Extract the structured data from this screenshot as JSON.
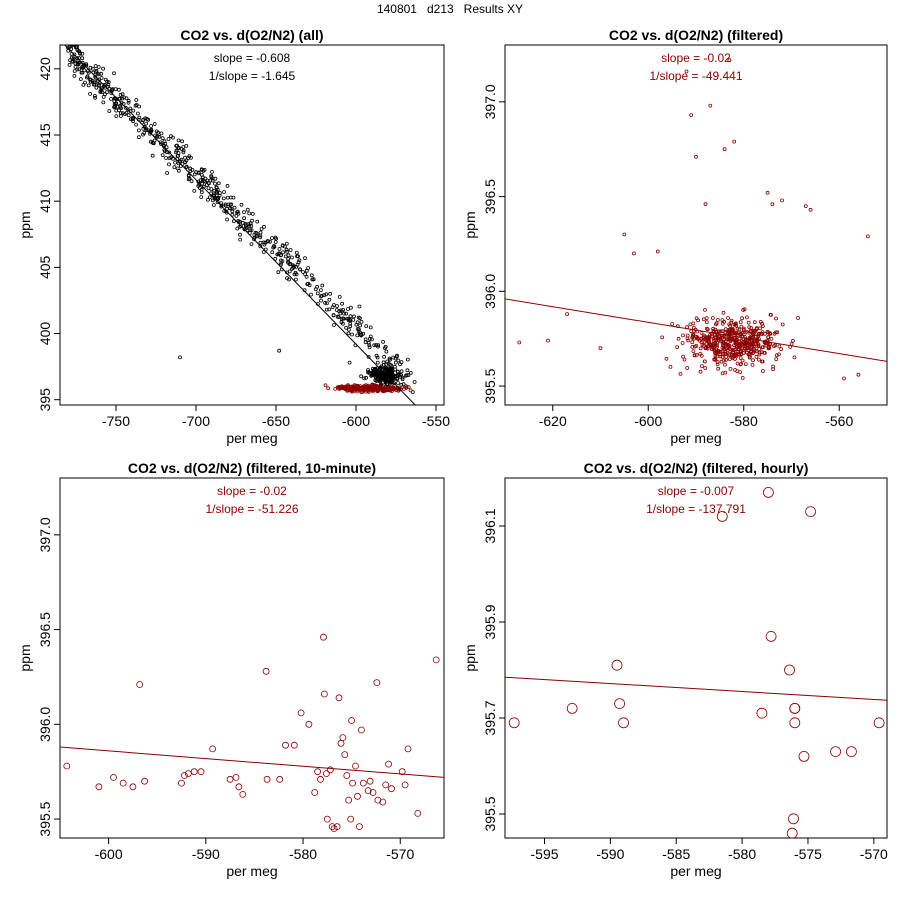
{
  "page_title": "140801   d213   Results XY",
  "colors": {
    "all_points": "#000000",
    "filtered": "#8b0000",
    "axis": "#000000"
  },
  "chart_data": [
    {
      "type": "scatter",
      "title": "CO2 vs. d(O2/N2) (all)",
      "xlabel": "per meg",
      "ylabel": "ppm",
      "xlim": [
        -785,
        -545
      ],
      "ylim": [
        394.6,
        421.8
      ],
      "xticks": [
        -750,
        -700,
        -650,
        -600,
        -550
      ],
      "yticks": [
        395,
        400,
        405,
        410,
        415,
        420
      ],
      "annotations": [
        "slope = -0.608",
        "1/slope = -1.645"
      ],
      "annotation_color": "#000000",
      "fit_line": {
        "slope": -0.608,
        "p1": [
          -782,
          421.8
        ],
        "p2": [
          -563,
          394.6
        ],
        "color": "#000000"
      },
      "series": [
        {
          "name": "all",
          "color": "#000000",
          "size": "small",
          "trend": {
            "x0": -780,
            "y0": 421.2,
            "slope": -0.115,
            "noise": 0.9,
            "n": 620,
            "xmin": -780,
            "xmax": -560
          },
          "cluster": {
            "xmin": -600,
            "xmax": -565,
            "ymin": 395.2,
            "ymax": 398.5,
            "n": 220
          },
          "points": [
            [
              -780,
              421.6
            ],
            [
              -778,
              421.5
            ],
            [
              -779,
              420.3
            ],
            [
              -710,
              398.2
            ],
            [
              -648,
              398.7
            ],
            [
              -604,
              397.8
            ]
          ]
        },
        {
          "name": "filtered",
          "color": "#8b0000",
          "size": "small",
          "cluster": {
            "xmin": -628,
            "xmax": -555,
            "ymin": 395.4,
            "ymax": 396.3,
            "n": 260
          }
        }
      ]
    },
    {
      "type": "scatter",
      "title": "CO2 vs. d(O2/N2) (filtered)",
      "xlabel": "per meg",
      "ylabel": "ppm",
      "xlim": [
        -630,
        -550
      ],
      "ylim": [
        395.4,
        397.3
      ],
      "xticks": [
        -620,
        -600,
        -580,
        -560
      ],
      "yticks": [
        395.5,
        396.0,
        396.5,
        397.0
      ],
      "annotations": [
        "slope = -0.02",
        "1/slope = -49.441"
      ],
      "annotation_color": "#8b0000",
      "fit_line": {
        "slope": -0.02,
        "p1": [
          -630,
          395.96
        ],
        "p2": [
          -550,
          395.63
        ],
        "color": "#8b0000"
      },
      "series": [
        {
          "name": "filtered",
          "color": "#8b0000",
          "size": "small",
          "cluster": {
            "xmin": -600,
            "xmax": -565,
            "ymin": 395.45,
            "ymax": 396.0,
            "n": 480
          },
          "points": [
            [
              -627,
              395.73
            ],
            [
              -621,
              395.74
            ],
            [
              -617,
              395.88
            ],
            [
              -610,
              395.7
            ],
            [
              -605,
              396.3
            ],
            [
              -603,
              396.2
            ],
            [
              -598,
              396.21
            ],
            [
              -592,
              397.16
            ],
            [
              -591,
              396.93
            ],
            [
              -590,
              396.71
            ],
            [
              -588,
              396.46
            ],
            [
              -587,
              396.98
            ],
            [
              -584,
              396.75
            ],
            [
              -583,
              397.22
            ],
            [
              -582,
              396.79
            ],
            [
              -575,
              396.52
            ],
            [
              -574,
              396.46
            ],
            [
              -572,
              396.48
            ],
            [
              -567,
              396.45
            ],
            [
              -566,
              396.43
            ],
            [
              -554,
              396.29
            ],
            [
              -556,
              395.56
            ],
            [
              -559,
              395.54
            ]
          ]
        }
      ]
    },
    {
      "type": "scatter",
      "title": "CO2 vs. d(O2/N2) (filtered, 10-minute)",
      "xlabel": "per meg",
      "ylabel": "ppm",
      "xlim": [
        -605,
        -565.5
      ],
      "ylim": [
        395.4,
        397.3
      ],
      "xticks": [
        -600,
        -590,
        -580,
        -570
      ],
      "yticks": [
        395.5,
        396.0,
        396.5,
        397.0
      ],
      "annotations": [
        "slope = -0.02",
        "1/slope = -51.226"
      ],
      "annotation_color": "#8b0000",
      "fit_line": {
        "slope": -0.02,
        "p1": [
          -605,
          395.88
        ],
        "p2": [
          -565.5,
          395.72
        ],
        "color": "#8b0000"
      },
      "series": [
        {
          "name": "10-minute",
          "color": "#8b0000",
          "size": "medium",
          "points": [
            [
              -604.3,
              395.78
            ],
            [
              -601,
              395.67
            ],
            [
              -599.5,
              395.72
            ],
            [
              -598.5,
              395.69
            ],
            [
              -597.5,
              395.67
            ],
            [
              -596.8,
              396.21
            ],
            [
              -596.3,
              395.7
            ],
            [
              -592.5,
              395.69
            ],
            [
              -592.2,
              395.73
            ],
            [
              -591.8,
              395.74
            ],
            [
              -591.2,
              395.75
            ],
            [
              -590.5,
              395.75
            ],
            [
              -589.3,
              395.87
            ],
            [
              -587.5,
              395.71
            ],
            [
              -586.9,
              395.72
            ],
            [
              -586.6,
              395.67
            ],
            [
              -586.2,
              395.63
            ],
            [
              -583.8,
              396.28
            ],
            [
              -583.7,
              395.71
            ],
            [
              -582.4,
              395.71
            ],
            [
              -581.8,
              395.89
            ],
            [
              -580.9,
              395.89
            ],
            [
              -580.2,
              396.06
            ],
            [
              -579.4,
              396.0
            ],
            [
              -578.8,
              395.64
            ],
            [
              -578.5,
              395.75
            ],
            [
              -578.2,
              395.71
            ],
            [
              -577.9,
              396.46
            ],
            [
              -577.8,
              396.16
            ],
            [
              -577.6,
              395.74
            ],
            [
              -577.5,
              395.5
            ],
            [
              -577.2,
              395.76
            ],
            [
              -577,
              395.46
            ],
            [
              -576.8,
              395.45
            ],
            [
              -576.5,
              395.46
            ],
            [
              -576.3,
              396.14
            ],
            [
              -576.1,
              395.9
            ],
            [
              -575.9,
              395.93
            ],
            [
              -575.7,
              395.84
            ],
            [
              -575.5,
              395.73
            ],
            [
              -575.3,
              395.6
            ],
            [
              -575.1,
              395.5
            ],
            [
              -575,
              396.02
            ],
            [
              -574.9,
              395.69
            ],
            [
              -574.6,
              395.78
            ],
            [
              -574.4,
              395.62
            ],
            [
              -574.2,
              395.46
            ],
            [
              -574,
              395.97
            ],
            [
              -573.8,
              395.69
            ],
            [
              -573.3,
              395.65
            ],
            [
              -573.1,
              395.7
            ],
            [
              -572.8,
              395.64
            ],
            [
              -572.4,
              396.22
            ],
            [
              -572.3,
              395.6
            ],
            [
              -571.8,
              395.59
            ],
            [
              -571.5,
              395.68
            ],
            [
              -571.2,
              395.79
            ],
            [
              -570.9,
              395.66
            ],
            [
              -569.8,
              395.75
            ],
            [
              -569.5,
              395.68
            ],
            [
              -569.2,
              395.87
            ],
            [
              -568.2,
              395.53
            ],
            [
              -566.3,
              396.34
            ]
          ]
        }
      ]
    },
    {
      "type": "scatter",
      "title": "CO2 vs. d(O2/N2) (filtered, hourly)",
      "xlabel": "per meg",
      "ylabel": "ppm",
      "xlim": [
        -598,
        -569
      ],
      "ylim": [
        395.45,
        396.2
      ],
      "xticks": [
        -595,
        -590,
        -585,
        -580,
        -575,
        -570
      ],
      "yticks": [
        395.5,
        395.7,
        395.9,
        396.1
      ],
      "annotations": [
        "slope = -0.007",
        "1/slope = -137.791"
      ],
      "annotation_color": "#8b0000",
      "fit_line": {
        "slope": -0.007,
        "p1": [
          -598,
          395.785
        ],
        "p2": [
          -569,
          395.737
        ],
        "color": "#8b0000"
      },
      "series": [
        {
          "name": "hourly",
          "color": "#8b0000",
          "size": "large",
          "points": [
            [
              -597.3,
              395.69
            ],
            [
              -592.9,
              395.72
            ],
            [
              -589.5,
              395.81
            ],
            [
              -589.3,
              395.73
            ],
            [
              -589,
              395.69
            ],
            [
              -581.5,
              396.12
            ],
            [
              -578.5,
              395.71
            ],
            [
              -578,
              396.17
            ],
            [
              -577.8,
              395.87
            ],
            [
              -576.4,
              395.8
            ],
            [
              -576,
              395.72
            ],
            [
              -576,
              395.72
            ],
            [
              -576,
              395.69
            ],
            [
              -576.1,
              395.49
            ],
            [
              -576.2,
              395.46
            ],
            [
              -575.3,
              395.62
            ],
            [
              -574.8,
              396.13
            ],
            [
              -572.9,
              395.63
            ],
            [
              -571.7,
              395.63
            ],
            [
              -569.6,
              395.69
            ]
          ]
        }
      ]
    }
  ]
}
